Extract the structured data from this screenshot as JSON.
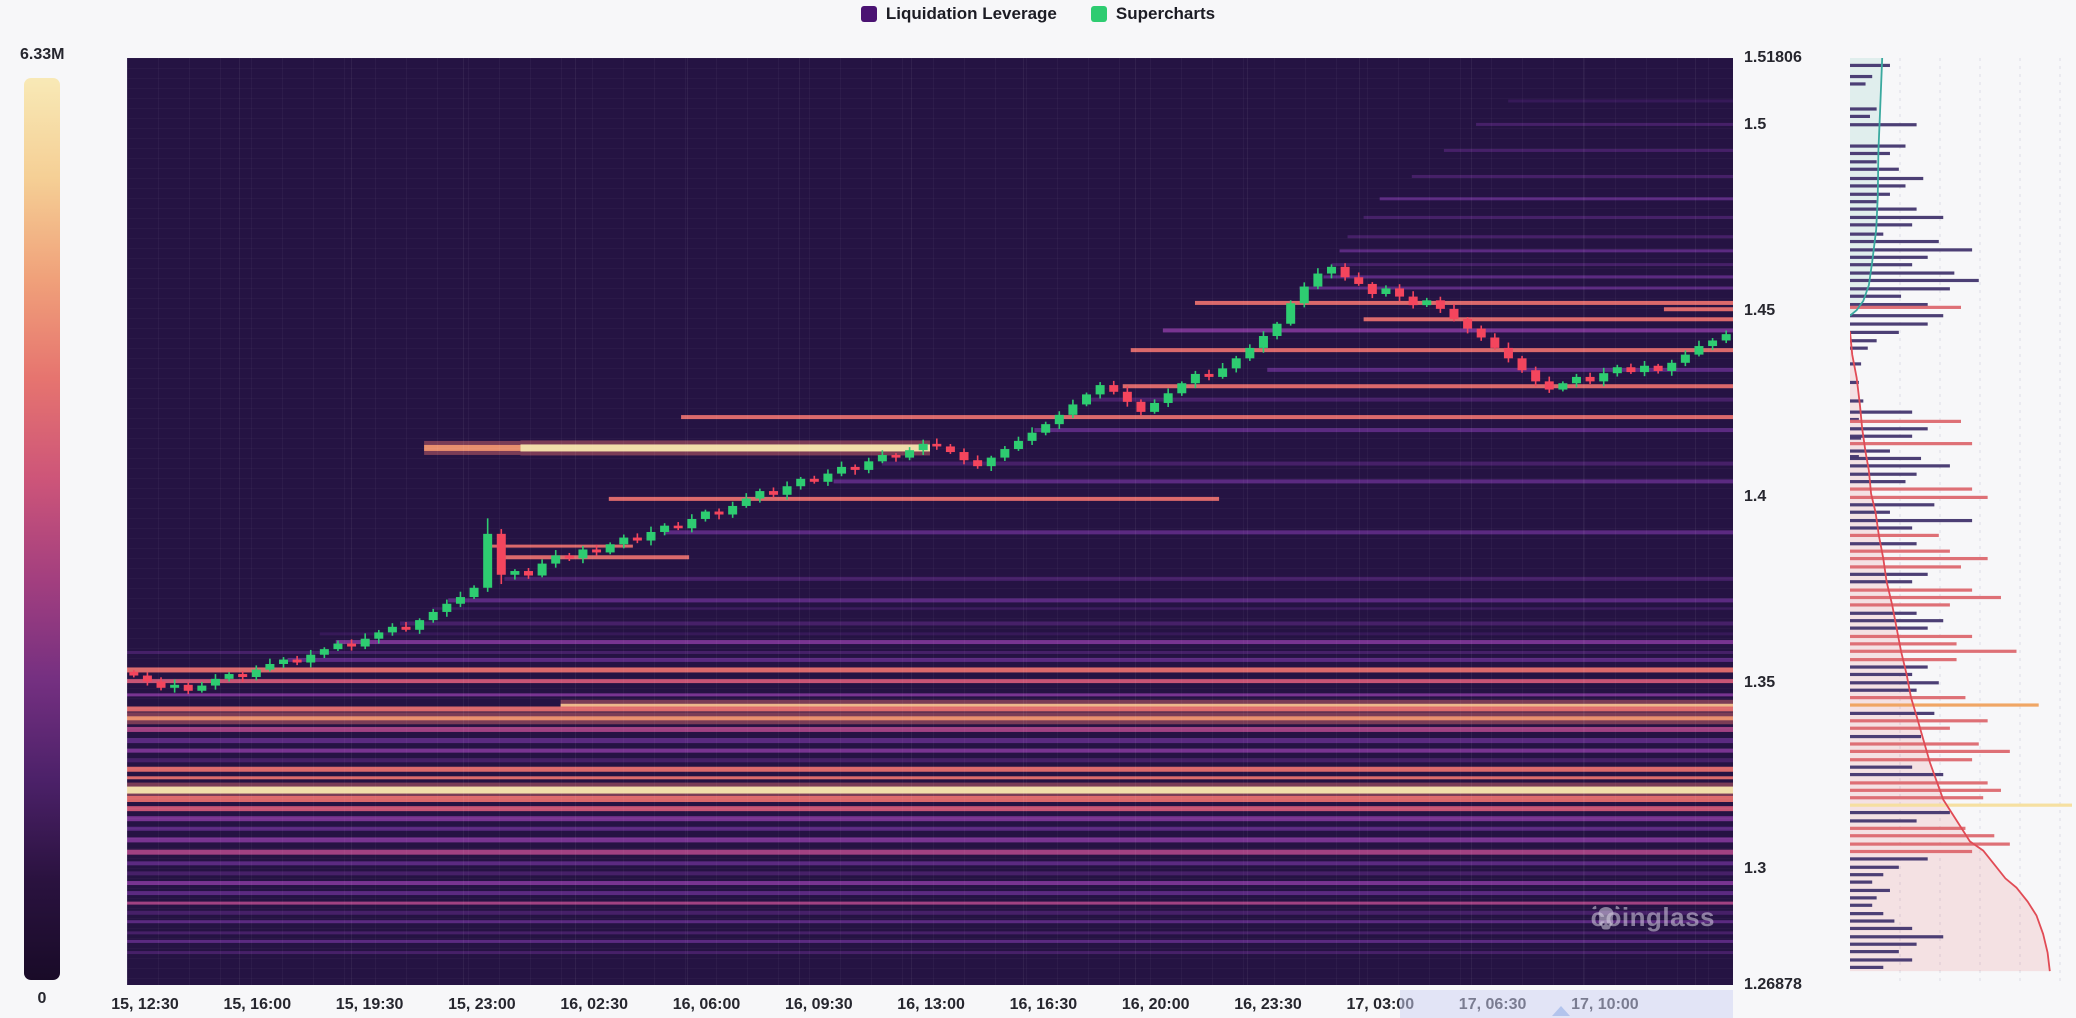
{
  "legend": {
    "items": [
      {
        "label": "Liquidation Leverage",
        "color": "#4a1272"
      },
      {
        "label": "Supercharts",
        "color": "#2ecc71"
      }
    ]
  },
  "colorbar": {
    "max_label": "6.33M",
    "min_label": "0",
    "stops": [
      "#f8e9b6",
      "#f5cf95",
      "#f0a17a",
      "#e6746f",
      "#cd5579",
      "#a33f7f",
      "#753081",
      "#4c2169",
      "#2a123f",
      "#190b28"
    ]
  },
  "watermark": {
    "text": "coinglass"
  },
  "chart_data": {
    "type": "heatmap",
    "subtype": "liquidation-leverage-heatmap-with-candlesticks",
    "title": "Liquidation Leverage / Supercharts",
    "colorbar_max": "6.33M",
    "colorbar_min": "0",
    "price_max": 1.51806,
    "price_min": 1.26878,
    "price_ticks": [
      {
        "label": "1.51806",
        "price": 1.51806
      },
      {
        "label": "1.5",
        "price": 1.5
      },
      {
        "label": "1.45",
        "price": 1.45
      },
      {
        "label": "1.4",
        "price": 1.4
      },
      {
        "label": "1.35",
        "price": 1.35
      },
      {
        "label": "1.3",
        "price": 1.3
      },
      {
        "label": "1.26878",
        "price": 1.26878
      }
    ],
    "time_ticks": [
      "15, 12:30",
      "15, 16:00",
      "15, 19:30",
      "15, 23:00",
      "16, 02:30",
      "16, 06:00",
      "16, 09:30",
      "16, 13:00",
      "16, 16:30",
      "16, 20:00",
      "16, 23:30",
      "17, 03:00",
      "17, 06:30",
      "17, 10:00"
    ],
    "candles": {
      "up_color": "#2ecc71",
      "down_color": "#f4455d",
      "first_open": 1.353,
      "closes": [
        1.352,
        1.3504,
        1.3487,
        1.3495,
        1.3479,
        1.3493,
        1.3511,
        1.3524,
        1.3516,
        1.3536,
        1.3551,
        1.3563,
        1.3555,
        1.3576,
        1.3591,
        1.3606,
        1.3598,
        1.3619,
        1.3636,
        1.3651,
        1.3643,
        1.3669,
        1.3691,
        1.3713,
        1.3731,
        1.3756,
        1.3901,
        1.3791,
        1.3801,
        1.3789,
        1.3821,
        1.3843,
        1.3835,
        1.3859,
        1.3851,
        1.3873,
        1.3891,
        1.3883,
        1.3906,
        1.3923,
        1.3916,
        1.3941,
        1.3961,
        1.3953,
        1.3976,
        1.3996,
        1.4016,
        1.4006,
        1.4029,
        1.4049,
        1.4041,
        1.4063,
        1.4081,
        1.4073,
        1.4096,
        1.4113,
        1.4106,
        1.4126,
        1.4143,
        1.4136,
        1.4121,
        1.4099,
        1.4083,
        1.4106,
        1.4129,
        1.4151,
        1.4173,
        1.4196,
        1.4221,
        1.4249,
        1.4276,
        1.4301,
        1.4283,
        1.4256,
        1.4229,
        1.4253,
        1.4279,
        1.4306,
        1.4331,
        1.4323,
        1.4346,
        1.4373,
        1.4401,
        1.4433,
        1.4466,
        1.4521,
        1.4566,
        1.4601,
        1.4619,
        1.4591,
        1.4573,
        1.4546,
        1.4561,
        1.4539,
        1.4516,
        1.4529,
        1.4506,
        1.4479,
        1.4453,
        1.4429,
        1.4401,
        1.4373,
        1.4341,
        1.4311,
        1.4289,
        1.4306,
        1.4323,
        1.4311,
        1.4333,
        1.4349,
        1.4336,
        1.4353,
        1.4339,
        1.4361,
        1.4383,
        1.4406,
        1.4421,
        1.4438
      ]
    },
    "heat_colors": [
      "#f8e6ae",
      "#f3c08e",
      "#ef9470",
      "#e56e6e",
      "#d15878",
      "#a84486",
      "#7c3696",
      "#5e2b85",
      "#48216a",
      "#37195a"
    ],
    "bands": [
      [
        1.3535,
        5,
        0,
        1,
        3
      ],
      [
        1.3505,
        4,
        0,
        1,
        4
      ],
      [
        1.3468,
        3,
        0,
        1,
        6
      ],
      [
        1.344,
        3,
        0.27,
        1,
        1
      ],
      [
        1.343,
        5,
        0,
        1,
        3
      ],
      [
        1.3405,
        4,
        0,
        1,
        2
      ],
      [
        1.3375,
        5,
        0,
        1,
        5
      ],
      [
        1.3345,
        5,
        0,
        1,
        7
      ],
      [
        1.3318,
        4,
        0,
        1,
        6
      ],
      [
        1.3292,
        4,
        0,
        1,
        8
      ],
      [
        1.3268,
        5,
        0,
        1,
        3
      ],
      [
        1.3245,
        3,
        0,
        1,
        3
      ],
      [
        1.3212,
        7,
        0,
        1,
        0
      ],
      [
        1.3188,
        6,
        0,
        1,
        3
      ],
      [
        1.3162,
        5,
        0,
        1,
        4
      ],
      [
        1.3135,
        5,
        0,
        1,
        6
      ],
      [
        1.3108,
        4,
        0,
        1,
        7
      ],
      [
        1.3078,
        5,
        0,
        1,
        6
      ],
      [
        1.3045,
        5,
        0,
        1,
        5
      ],
      [
        1.3015,
        4,
        0,
        1,
        7
      ],
      [
        1.2988,
        4,
        0,
        1,
        8
      ],
      [
        1.2962,
        4,
        0,
        1,
        6
      ],
      [
        1.2935,
        4,
        0,
        1,
        7
      ],
      [
        1.2908,
        3,
        0,
        1,
        5
      ],
      [
        1.2882,
        4,
        0,
        1,
        8
      ],
      [
        1.2858,
        3,
        0,
        1,
        7
      ],
      [
        1.2828,
        3,
        0,
        1,
        8
      ],
      [
        1.2805,
        3,
        0,
        1,
        7
      ],
      [
        1.2775,
        3,
        0,
        1,
        8
      ],
      [
        1.3562,
        4,
        0.1,
        1,
        7
      ],
      [
        1.3582,
        3,
        0,
        1,
        8
      ],
      [
        1.361,
        4,
        0.13,
        1,
        6
      ],
      [
        1.3632,
        3,
        0.12,
        1,
        9
      ],
      [
        1.366,
        4,
        0.17,
        1,
        8
      ],
      [
        1.37,
        3,
        0.19,
        1,
        9
      ],
      [
        1.3722,
        4,
        0.2,
        1,
        7
      ],
      [
        1.378,
        4,
        0.235,
        1,
        8
      ],
      [
        1.3838,
        4,
        0.235,
        0.35,
        3
      ],
      [
        1.3868,
        3,
        0.225,
        0.315,
        3
      ],
      [
        1.3905,
        4,
        0.335,
        1,
        7
      ],
      [
        1.3995,
        4,
        0.3,
        0.68,
        3
      ],
      [
        1.4042,
        4,
        0.44,
        1,
        7
      ],
      [
        1.409,
        4,
        0.47,
        1,
        8
      ],
      [
        1.4132,
        6,
        0.185,
        0.245,
        2
      ],
      [
        1.4132,
        7,
        0.245,
        0.5,
        0
      ],
      [
        1.418,
        4,
        0.565,
        1,
        7
      ],
      [
        1.4215,
        4,
        0.345,
        1,
        3
      ],
      [
        1.4262,
        4,
        0.6,
        1,
        8
      ],
      [
        1.4298,
        4,
        0.62,
        1,
        3
      ],
      [
        1.4342,
        4,
        0.71,
        1,
        7
      ],
      [
        1.4395,
        4,
        0.625,
        1,
        3
      ],
      [
        1.4448,
        4,
        0.645,
        1,
        6
      ],
      [
        1.4478,
        4,
        0.77,
        1,
        3
      ],
      [
        1.4505,
        4,
        0.957,
        1,
        3
      ],
      [
        1.4522,
        4,
        0.665,
        1,
        3
      ],
      [
        1.4562,
        3,
        0.73,
        1,
        7
      ],
      [
        1.4592,
        3,
        0.745,
        1,
        7
      ],
      [
        1.4625,
        3,
        0.75,
        1,
        8
      ],
      [
        1.4662,
        3,
        0.755,
        1,
        7
      ],
      [
        1.47,
        3,
        0.76,
        1,
        8
      ],
      [
        1.4752,
        3,
        0.77,
        1,
        8
      ],
      [
        1.4802,
        3,
        0.78,
        1,
        7
      ],
      [
        1.4862,
        3,
        0.8,
        1,
        8
      ],
      [
        1.4932,
        3,
        0.82,
        1,
        8
      ],
      [
        1.5002,
        3,
        0.84,
        1,
        8
      ],
      [
        1.5065,
        3,
        0.86,
        1,
        9
      ]
    ],
    "depth_panel": {
      "bar_colors": [
        "#45376f",
        "#dd6a70",
        "#efa25f",
        "#f6df9d"
      ],
      "ask_line_color": "#3aa99f",
      "bid_line_color": "#e14b55",
      "bars": [
        [
          0.008,
          0.18,
          0
        ],
        [
          0.02,
          0.1,
          0
        ],
        [
          0.028,
          0.07,
          0
        ],
        [
          0.055,
          0.12,
          0
        ],
        [
          0.063,
          0.09,
          0
        ],
        [
          0.072,
          0.3,
          0
        ],
        [
          0.095,
          0.25,
          0
        ],
        [
          0.103,
          0.18,
          0
        ],
        [
          0.112,
          0.12,
          0
        ],
        [
          0.12,
          0.22,
          0
        ],
        [
          0.13,
          0.33,
          0
        ],
        [
          0.138,
          0.25,
          0
        ],
        [
          0.147,
          0.18,
          0
        ],
        [
          0.155,
          0.12,
          0
        ],
        [
          0.163,
          0.3,
          0
        ],
        [
          0.172,
          0.42,
          0
        ],
        [
          0.18,
          0.28,
          0
        ],
        [
          0.19,
          0.15,
          0
        ],
        [
          0.198,
          0.4,
          0
        ],
        [
          0.207,
          0.55,
          0
        ],
        [
          0.215,
          0.35,
          0
        ],
        [
          0.223,
          0.28,
          0
        ],
        [
          0.232,
          0.47,
          0
        ],
        [
          0.24,
          0.58,
          0
        ],
        [
          0.249,
          0.45,
          0
        ],
        [
          0.257,
          0.23,
          0
        ],
        [
          0.266,
          0.35,
          0
        ],
        [
          0.269,
          0.5,
          1
        ],
        [
          0.278,
          0.42,
          0
        ],
        [
          0.287,
          0.35,
          0
        ],
        [
          0.296,
          0.22,
          0
        ],
        [
          0.305,
          0.12,
          0
        ],
        [
          0.313,
          0.08,
          0
        ],
        [
          0.33,
          0.05,
          0
        ],
        [
          0.35,
          0.04,
          0
        ],
        [
          0.37,
          0.06,
          0
        ],
        [
          0.39,
          0.04,
          0
        ],
        [
          0.41,
          0.05,
          0
        ],
        [
          0.43,
          0.04,
          0
        ],
        [
          0.382,
          0.28,
          0
        ],
        [
          0.392,
          0.5,
          1
        ],
        [
          0.4,
          0.35,
          0
        ],
        [
          0.408,
          0.28,
          0
        ],
        [
          0.416,
          0.55,
          1
        ],
        [
          0.424,
          0.18,
          0
        ],
        [
          0.432,
          0.32,
          0
        ],
        [
          0.44,
          0.45,
          0
        ],
        [
          0.449,
          0.3,
          0
        ],
        [
          0.457,
          0.25,
          0
        ],
        [
          0.465,
          0.55,
          1
        ],
        [
          0.474,
          0.62,
          1
        ],
        [
          0.482,
          0.38,
          0
        ],
        [
          0.49,
          0.18,
          0
        ],
        [
          0.499,
          0.55,
          0
        ],
        [
          0.507,
          0.28,
          0
        ],
        [
          0.515,
          0.4,
          1
        ],
        [
          0.524,
          0.3,
          0
        ],
        [
          0.532,
          0.45,
          1
        ],
        [
          0.54,
          0.62,
          1
        ],
        [
          0.549,
          0.5,
          1
        ],
        [
          0.557,
          0.35,
          0
        ],
        [
          0.565,
          0.28,
          0
        ],
        [
          0.574,
          0.55,
          1
        ],
        [
          0.582,
          0.68,
          1
        ],
        [
          0.59,
          0.45,
          1
        ],
        [
          0.599,
          0.3,
          0
        ],
        [
          0.607,
          0.42,
          0
        ],
        [
          0.615,
          0.35,
          0
        ],
        [
          0.624,
          0.55,
          1
        ],
        [
          0.632,
          0.48,
          1
        ],
        [
          0.64,
          0.75,
          1
        ],
        [
          0.649,
          0.48,
          1
        ],
        [
          0.657,
          0.35,
          0
        ],
        [
          0.665,
          0.28,
          0
        ],
        [
          0.674,
          0.4,
          0
        ],
        [
          0.682,
          0.3,
          0
        ],
        [
          0.69,
          0.52,
          1
        ],
        [
          0.698,
          0.85,
          2
        ],
        [
          0.707,
          0.38,
          0
        ],
        [
          0.715,
          0.62,
          1
        ],
        [
          0.723,
          0.45,
          1
        ],
        [
          0.732,
          0.32,
          0
        ],
        [
          0.74,
          0.58,
          1
        ],
        [
          0.748,
          0.72,
          1
        ],
        [
          0.757,
          0.55,
          1
        ],
        [
          0.765,
          0.28,
          0
        ],
        [
          0.773,
          0.42,
          0
        ],
        [
          0.782,
          0.62,
          1
        ],
        [
          0.79,
          0.68,
          1
        ],
        [
          0.798,
          0.6,
          1
        ],
        [
          0.806,
          1.0,
          3
        ],
        [
          0.814,
          0.45,
          0
        ],
        [
          0.823,
          0.3,
          0
        ],
        [
          0.831,
          0.52,
          1
        ],
        [
          0.839,
          0.65,
          1
        ],
        [
          0.848,
          0.72,
          1
        ],
        [
          0.856,
          0.55,
          1
        ],
        [
          0.864,
          0.35,
          0
        ],
        [
          0.873,
          0.22,
          0
        ],
        [
          0.881,
          0.15,
          0
        ],
        [
          0.889,
          0.1,
          0
        ],
        [
          0.898,
          0.18,
          0
        ],
        [
          0.906,
          0.12,
          0
        ],
        [
          0.914,
          0.1,
          0
        ],
        [
          0.923,
          0.15,
          0
        ],
        [
          0.931,
          0.2,
          0
        ],
        [
          0.939,
          0.28,
          0
        ],
        [
          0.948,
          0.42,
          0
        ],
        [
          0.956,
          0.3,
          0
        ],
        [
          0.964,
          0.22,
          0
        ],
        [
          0.973,
          0.28,
          0
        ],
        [
          0.981,
          0.15,
          0
        ]
      ],
      "ask_line": [
        [
          0.145,
          0.0
        ],
        [
          0.135,
          0.06
        ],
        [
          0.128,
          0.1
        ],
        [
          0.125,
          0.15
        ],
        [
          0.118,
          0.185
        ],
        [
          0.1,
          0.22
        ],
        [
          0.085,
          0.245
        ],
        [
          0.06,
          0.262
        ],
        [
          0.03,
          0.272
        ],
        [
          0.0,
          0.278
        ]
      ],
      "bid_line": [
        [
          0.0,
          0.295
        ],
        [
          0.01,
          0.32
        ],
        [
          0.03,
          0.345
        ],
        [
          0.045,
          0.375
        ],
        [
          0.055,
          0.4
        ],
        [
          0.07,
          0.425
        ],
        [
          0.085,
          0.445
        ],
        [
          0.095,
          0.47
        ],
        [
          0.115,
          0.49
        ],
        [
          0.13,
          0.515
        ],
        [
          0.15,
          0.54
        ],
        [
          0.165,
          0.565
        ],
        [
          0.19,
          0.59
        ],
        [
          0.21,
          0.615
        ],
        [
          0.23,
          0.64
        ],
        [
          0.255,
          0.665
        ],
        [
          0.275,
          0.69
        ],
        [
          0.3,
          0.71
        ],
        [
          0.33,
          0.735
        ],
        [
          0.36,
          0.76
        ],
        [
          0.39,
          0.78
        ],
        [
          0.42,
          0.8
        ],
        [
          0.46,
          0.815
        ],
        [
          0.5,
          0.83
        ],
        [
          0.54,
          0.845
        ],
        [
          0.6,
          0.855
        ],
        [
          0.65,
          0.87
        ],
        [
          0.7,
          0.885
        ],
        [
          0.75,
          0.895
        ],
        [
          0.8,
          0.91
        ],
        [
          0.84,
          0.925
        ],
        [
          0.87,
          0.945
        ],
        [
          0.89,
          0.965
        ],
        [
          0.9,
          0.985
        ]
      ]
    }
  }
}
